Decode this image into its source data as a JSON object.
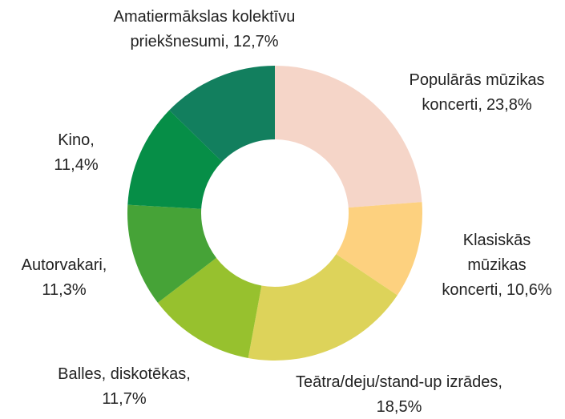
{
  "chart_data": {
    "type": "donut",
    "categories": [
      "Populārās mūzikas koncerti,",
      "Klasiskās mūzikas koncerti,",
      "Teātra/deju/stand-up izrādes,",
      "Balles, diskotēkas,",
      "Autorvakari,",
      "Kino,",
      "Amatiermākslas kolektīvu priekšnesumi,"
    ],
    "values": [
      23.8,
      10.6,
      18.5,
      11.7,
      11.3,
      11.4,
      12.7
    ],
    "value_labels": [
      "23,8%",
      "10,6%",
      "18,5%",
      "11,7%",
      "11,3%",
      "11,4%",
      "12,7%"
    ],
    "colors": [
      "#f5d5c8",
      "#fdd17f",
      "#ddd35a",
      "#97c12e",
      "#46a337",
      "#068e47",
      "#127f5e"
    ]
  }
}
